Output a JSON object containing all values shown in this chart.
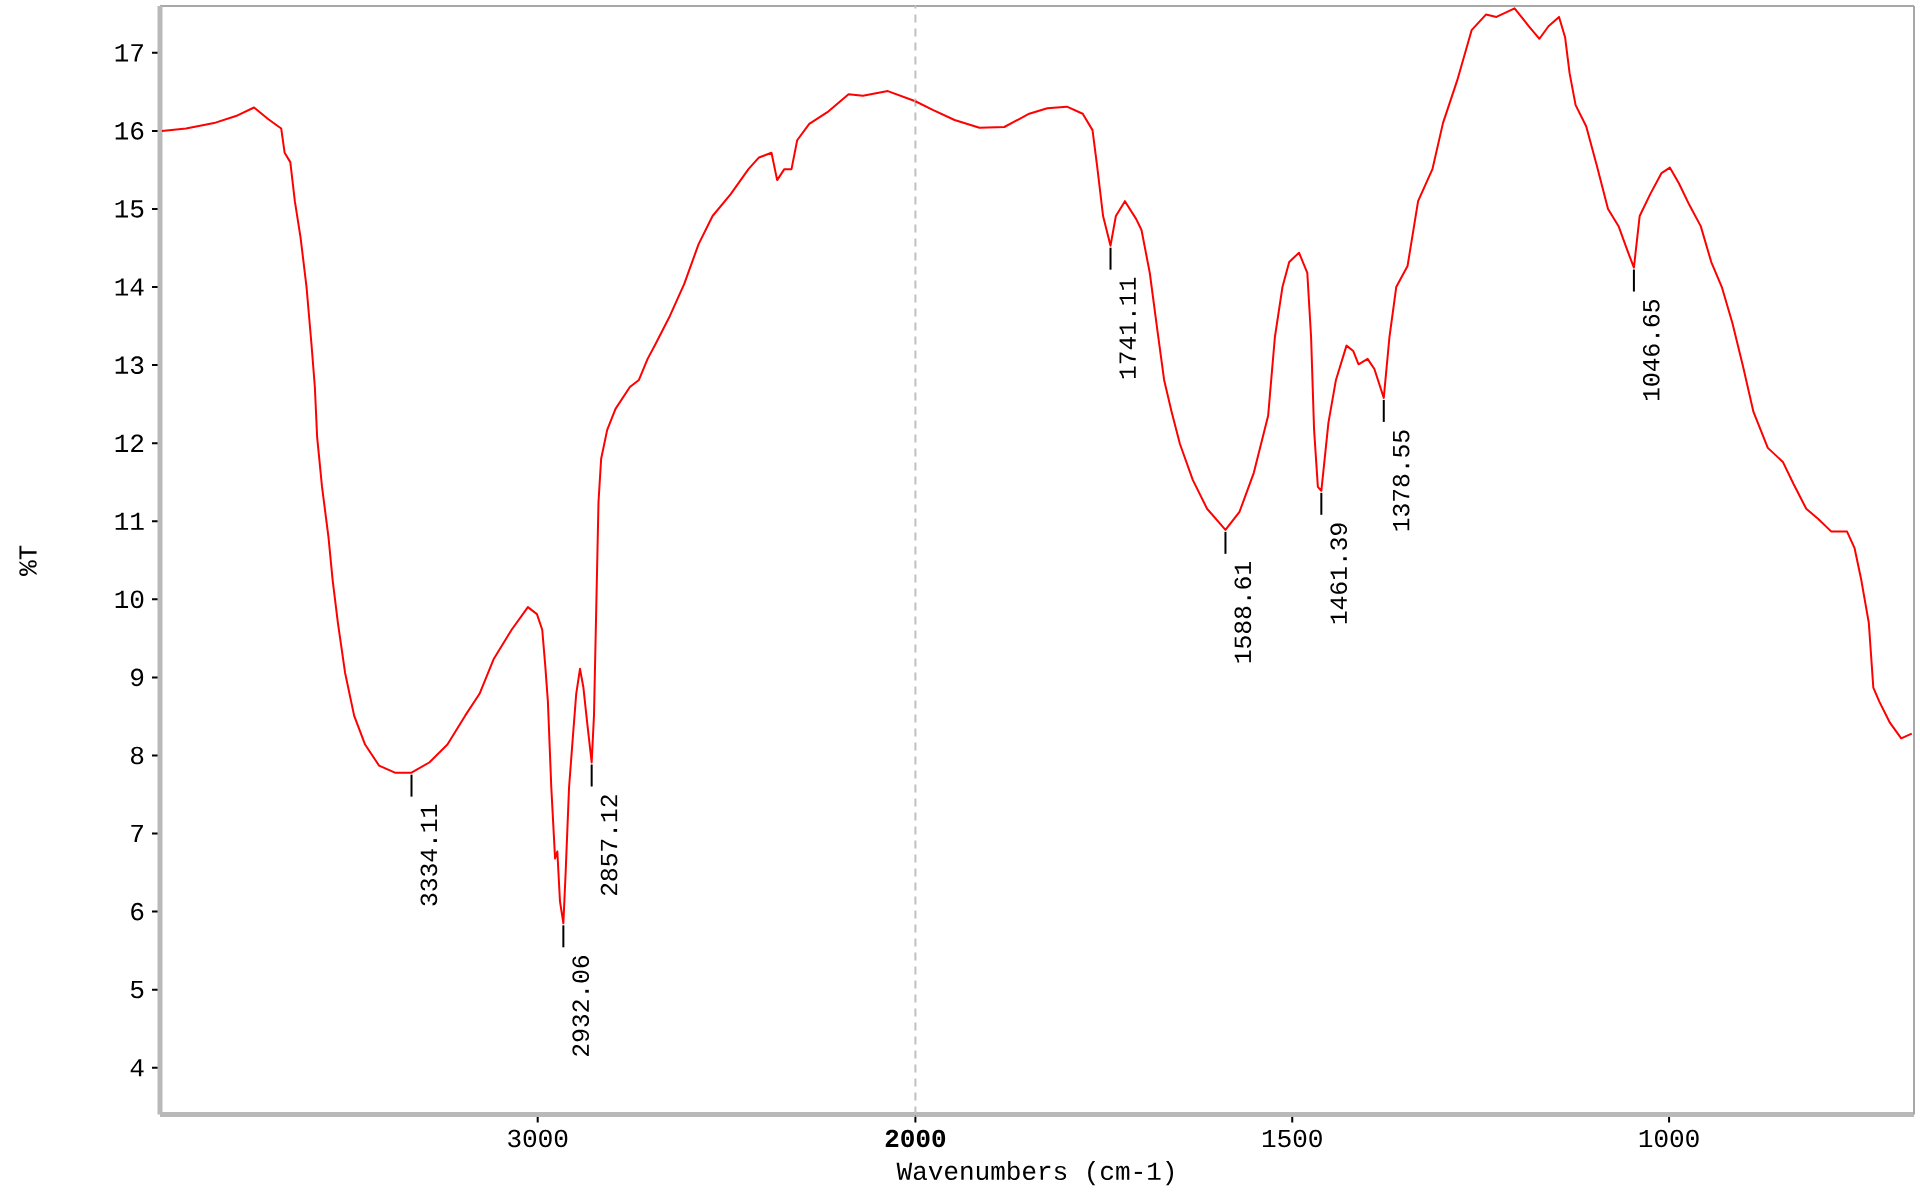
{
  "chart_data": [
    {
      "type": "line",
      "ylabel": "%T",
      "xlim": [
        4000,
        2000
      ],
      "xticks": [
        3000,
        2000
      ],
      "ylim": [
        3.4,
        17.6
      ],
      "yticks": [
        4,
        5,
        6,
        7,
        8,
        9,
        10,
        11,
        12,
        13,
        14,
        15,
        16,
        17
      ],
      "series": [
        {
          "color": "#ff0000",
          "x": [
            3995,
            3931,
            3857,
            3799,
            3751,
            3713,
            3679,
            3670,
            3655,
            3643,
            3628,
            3612,
            3599,
            3590,
            3584,
            3571,
            3554,
            3543,
            3529,
            3510,
            3486,
            3457,
            3420,
            3378,
            3334.11,
            3287,
            3239,
            3192,
            3154,
            3116,
            3069,
            3026,
            3002,
            2988,
            2980,
            2973,
            2964,
            2954,
            2948,
            2941,
            2932.06,
            2926,
            2917,
            2907,
            2898,
            2888,
            2879,
            2869,
            2857.12,
            2851,
            2845,
            2839,
            2832,
            2816,
            2794,
            2756,
            2732,
            2709,
            2688,
            2650,
            2612,
            2574,
            2537,
            2489,
            2442,
            2414,
            2381,
            2366,
            2347,
            2328,
            2313,
            2281,
            2233,
            2177,
            2139,
            2073,
            2000
          ],
          "values": [
            16.0,
            16.03,
            16.1,
            16.19,
            16.3,
            16.15,
            16.03,
            15.72,
            15.6,
            15.1,
            14.64,
            14.0,
            13.27,
            12.72,
            12.08,
            11.44,
            10.8,
            10.25,
            9.7,
            9.06,
            8.51,
            8.14,
            7.87,
            7.78,
            7.78,
            7.91,
            8.14,
            8.51,
            8.79,
            9.24,
            9.61,
            9.9,
            9.81,
            9.61,
            9.15,
            8.69,
            7.59,
            6.68,
            6.77,
            6.13,
            5.85,
            6.5,
            7.59,
            8.23,
            8.79,
            9.11,
            8.87,
            8.42,
            7.91,
            8.51,
            9.88,
            11.25,
            11.8,
            12.17,
            12.44,
            12.72,
            12.81,
            13.08,
            13.27,
            13.63,
            14.04,
            14.55,
            14.91,
            15.19,
            15.51,
            15.66,
            15.72,
            15.37,
            15.51,
            15.51,
            15.88,
            16.09,
            16.24,
            16.47,
            16.45,
            16.51,
            16.38
          ]
        }
      ],
      "annotations": [
        {
          "text": "3334.11",
          "x": 3334.11,
          "y": 7.78
        },
        {
          "text": "2932.06",
          "x": 2932.06,
          "y": 5.85
        },
        {
          "text": "2857.12",
          "x": 2857.12,
          "y": 7.91
        }
      ]
    },
    {
      "type": "line",
      "xlabel": "Wavenumbers (cm-1)",
      "xlim": [
        2000,
        675
      ],
      "xticks": [
        1500,
        1000
      ],
      "ylim": [
        3.4,
        17.6
      ],
      "tick_labels": "x",
      "ref_lines": [
        {
          "axis": "x",
          "value": 2000,
          "color": "#c0c0c0",
          "line_style": "dashed"
        }
      ],
      "series": [
        {
          "color": "#ff0000",
          "x": [
            2000,
            1977,
            1948,
            1915,
            1882,
            1849,
            1825,
            1799,
            1778,
            1765,
            1759,
            1751,
            1741.11,
            1734,
            1722,
            1707,
            1700,
            1689,
            1679,
            1670,
            1660,
            1649,
            1632,
            1613,
            1588.61,
            1570,
            1551,
            1532,
            1523,
            1513,
            1504,
            1491,
            1480,
            1475,
            1471,
            1466,
            1461.39,
            1452,
            1442,
            1428,
            1419,
            1412,
            1400,
            1391,
            1378.55,
            1371,
            1362,
            1347,
            1333,
            1314,
            1300,
            1281,
            1262,
            1243,
            1229,
            1205,
            1186,
            1172,
            1160,
            1146,
            1138,
            1132,
            1124,
            1110,
            1096,
            1081,
            1067,
            1055,
            1046.65,
            1039,
            1025,
            1010,
            999,
            987,
            973,
            958,
            944,
            930,
            916,
            902,
            888,
            869,
            849,
            835,
            818,
            802,
            785,
            764,
            754,
            745,
            735,
            729,
            721,
            707,
            692,
            678
          ],
          "values": [
            16.38,
            16.27,
            16.14,
            16.04,
            16.05,
            16.22,
            16.29,
            16.31,
            16.22,
            16.01,
            15.56,
            14.91,
            14.53,
            14.91,
            15.1,
            14.87,
            14.73,
            14.18,
            13.45,
            12.81,
            12.4,
            11.99,
            11.53,
            11.16,
            10.89,
            11.12,
            11.62,
            12.35,
            13.36,
            14.0,
            14.32,
            14.44,
            14.18,
            13.36,
            12.17,
            11.44,
            11.39,
            12.26,
            12.81,
            13.25,
            13.18,
            13.01,
            13.08,
            12.95,
            12.58,
            13.36,
            14.0,
            14.27,
            15.1,
            15.51,
            16.1,
            16.65,
            17.29,
            17.49,
            17.46,
            17.57,
            17.34,
            17.18,
            17.34,
            17.46,
            17.2,
            16.74,
            16.33,
            16.06,
            15.56,
            15.0,
            14.78,
            14.46,
            14.25,
            14.91,
            15.19,
            15.46,
            15.53,
            15.33,
            15.05,
            14.78,
            14.32,
            14.0,
            13.54,
            12.99,
            12.4,
            11.94,
            11.76,
            11.48,
            11.16,
            11.03,
            10.87,
            10.87,
            10.66,
            10.25,
            9.7,
            8.87,
            8.69,
            8.42,
            8.22,
            8.28
          ]
        }
      ],
      "annotations": [
        {
          "text": "1741.11",
          "x": 1741.11,
          "y": 14.53
        },
        {
          "text": "1588.61",
          "x": 1588.61,
          "y": 10.89
        },
        {
          "text": "1461.39",
          "x": 1461.39,
          "y": 11.39
        },
        {
          "text": "1378.55",
          "x": 1378.55,
          "y": 12.58
        },
        {
          "text": "1046.65",
          "x": 1046.65,
          "y": 14.25
        }
      ]
    }
  ]
}
